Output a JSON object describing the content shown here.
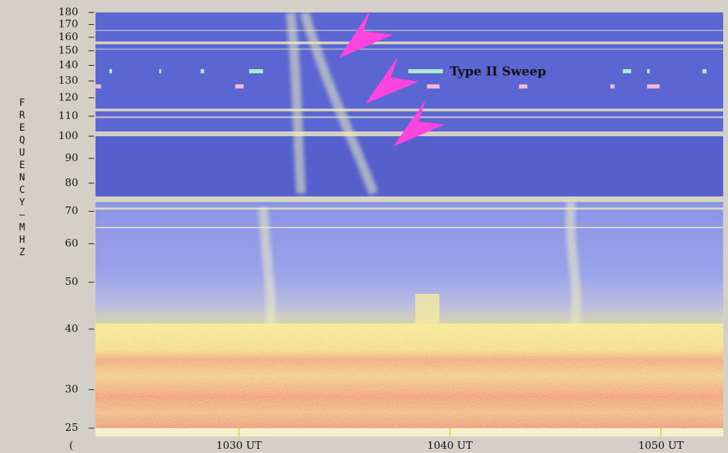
{
  "chart_data": {
    "type": "spectrogram",
    "y_label": "FREQUENCY – MHZ",
    "annotation": "Type II Sweep",
    "x_edge_label": "(",
    "log_y": true,
    "ylim": [
      25,
      180
    ],
    "yticks": [
      25,
      30,
      40,
      50,
      60,
      70,
      80,
      90,
      100,
      110,
      120,
      130,
      140,
      150,
      160,
      170,
      180
    ],
    "xlim": [
      1023.2,
      1052.95
    ],
    "xticks": [
      {
        "value": 1030,
        "label": "1030 UT"
      },
      {
        "value": 1040,
        "label": "1040 UT"
      },
      {
        "value": 1050,
        "label": "1050 UT"
      }
    ]
  }
}
